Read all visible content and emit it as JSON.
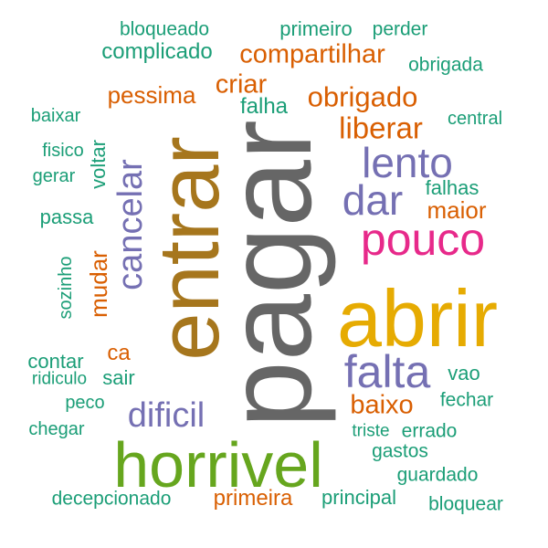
{
  "palette": {
    "teal": "#1b9e77",
    "orange": "#d95f02",
    "purple": "#7570b3",
    "magenta": "#e7298a",
    "green": "#66a61e",
    "gold": "#e6ab02",
    "brown": "#a6761d",
    "gray": "#666666"
  },
  "words": [
    {
      "text": "pagar",
      "color": "gray"
    },
    {
      "text": "entrar",
      "color": "brown"
    },
    {
      "text": "abrir",
      "color": "gold"
    },
    {
      "text": "horrivel",
      "color": "green"
    },
    {
      "text": "pouco",
      "color": "magenta"
    },
    {
      "text": "falta",
      "color": "purple"
    },
    {
      "text": "lento",
      "color": "purple"
    },
    {
      "text": "dar",
      "color": "purple"
    },
    {
      "text": "cancelar",
      "color": "purple"
    },
    {
      "text": "dificil",
      "color": "purple"
    },
    {
      "text": "liberar",
      "color": "orange"
    },
    {
      "text": "obrigado",
      "color": "orange"
    },
    {
      "text": "compartilhar",
      "color": "orange"
    },
    {
      "text": "criar",
      "color": "orange"
    },
    {
      "text": "pessima",
      "color": "orange"
    },
    {
      "text": "baixo",
      "color": "orange"
    },
    {
      "text": "maior",
      "color": "orange"
    },
    {
      "text": "primeira",
      "color": "orange"
    },
    {
      "text": "mudar",
      "color": "orange"
    },
    {
      "text": "ca",
      "color": "orange"
    },
    {
      "text": "complicado",
      "color": "teal"
    },
    {
      "text": "principal",
      "color": "teal"
    },
    {
      "text": "primeiro",
      "color": "teal"
    },
    {
      "text": "bloqueado",
      "color": "teal"
    },
    {
      "text": "perder",
      "color": "teal"
    },
    {
      "text": "obrigada",
      "color": "teal"
    },
    {
      "text": "falha",
      "color": "teal"
    },
    {
      "text": "baixar",
      "color": "teal"
    },
    {
      "text": "central",
      "color": "teal"
    },
    {
      "text": "fisico",
      "color": "teal"
    },
    {
      "text": "gerar",
      "color": "teal"
    },
    {
      "text": "voltar",
      "color": "teal"
    },
    {
      "text": "falhas",
      "color": "teal"
    },
    {
      "text": "passa",
      "color": "teal"
    },
    {
      "text": "sozinho",
      "color": "teal"
    },
    {
      "text": "contar",
      "color": "teal"
    },
    {
      "text": "ridiculo",
      "color": "teal"
    },
    {
      "text": "sair",
      "color": "teal"
    },
    {
      "text": "peco",
      "color": "teal"
    },
    {
      "text": "vao",
      "color": "teal"
    },
    {
      "text": "fechar",
      "color": "teal"
    },
    {
      "text": "chegar",
      "color": "teal"
    },
    {
      "text": "triste",
      "color": "teal"
    },
    {
      "text": "errado",
      "color": "teal"
    },
    {
      "text": "gastos",
      "color": "teal"
    },
    {
      "text": "guardado",
      "color": "teal"
    },
    {
      "text": "decepcionado",
      "color": "teal"
    },
    {
      "text": "bloquear",
      "color": "teal"
    }
  ]
}
